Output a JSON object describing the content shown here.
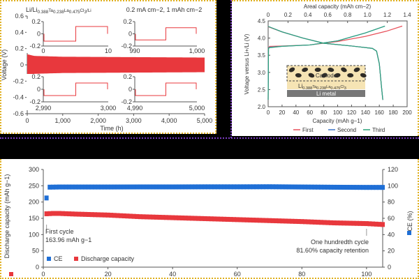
{
  "chart_data": [
    {
      "type": "line",
      "title": "Li/Li0.388Ta0.238La0.475Cl3/Li",
      "subtitle": "0.2 mA cm−2, 1 mAh cm−2",
      "xlabel": "Time (h)",
      "ylabel": "Voltage (V)",
      "xlim": [
        0,
        5000
      ],
      "ylim": [
        -0.6,
        0.6
      ],
      "xticks": [
        "0",
        "1,000",
        "2,000",
        "3,000",
        "4,000",
        "5,000"
      ],
      "yticks": [
        "-0.6",
        "-0.4",
        "-0.2",
        "0",
        "0.2",
        "0.4",
        "0.6"
      ],
      "series": [
        {
          "color": "#e8383d",
          "envelope_time": [
            0,
            200,
            1000,
            5000
          ],
          "envelope_amplitude": [
            0.13,
            0.11,
            0.1,
            0.09
          ]
        }
      ],
      "insets": [
        {
          "xticks": [
            "0",
            "10"
          ],
          "yticks": [
            "0.2",
            "0",
            "-0.2"
          ],
          "low": -0.12,
          "high": 0.12
        },
        {
          "xticks": [
            "990",
            "1,000"
          ],
          "yticks": [
            "0.2",
            "0",
            "-0.2"
          ],
          "low": -0.1,
          "high": 0.1
        },
        {
          "xticks": [
            "2,990",
            "3,000"
          ],
          "yticks": [
            "0.2",
            "0",
            "-0.2"
          ],
          "low": -0.1,
          "high": 0.1
        },
        {
          "xticks": [
            "4,990",
            "5,000"
          ],
          "yticks": [
            "0.2",
            "0",
            "-0.2"
          ],
          "low": -0.1,
          "high": 0.1
        }
      ]
    },
    {
      "type": "line",
      "xlabel": "Capacity (mAh g−1)",
      "ylabel": "Voltage versus Li+/Li (V)",
      "x2label": "Areal capacity (mAh cm−2)",
      "xlim": [
        0,
        200
      ],
      "ylim": [
        2.0,
        4.5
      ],
      "x2lim": [
        0,
        1.4
      ],
      "xticks": [
        "0",
        "20",
        "40",
        "60",
        "80",
        "100",
        "120",
        "140",
        "160",
        "180",
        "200"
      ],
      "x2ticks": [
        "0",
        "0.2",
        "0.4",
        "0.6",
        "0.8",
        "1.0",
        "1.2",
        "1.4"
      ],
      "yticks": [
        "2.0",
        "2.5",
        "3.0",
        "3.5",
        "4.0",
        "4.5"
      ],
      "legend": "bottom",
      "series": [
        {
          "name": "First",
          "color": "#e8505a",
          "charge": [
            [
              0,
              2.2
            ],
            [
              0.5,
              3.7
            ],
            [
              2,
              3.76
            ],
            [
              20,
              3.77
            ],
            [
              60,
              3.8
            ],
            [
              100,
              3.9
            ],
            [
              140,
              4.05
            ],
            [
              170,
              4.2
            ],
            [
              193,
              4.35
            ]
          ],
          "discharge": [
            [
              0,
              4.33
            ],
            [
              20,
              4.18
            ],
            [
              50,
              4.0
            ],
            [
              80,
              3.85
            ],
            [
              120,
              3.77
            ],
            [
              150,
              3.7
            ],
            [
              156,
              3.62
            ],
            [
              160,
              3.25
            ],
            [
              163,
              2.6
            ],
            [
              165,
              2.2
            ]
          ]
        },
        {
          "name": "Second",
          "color": "#3a72c8",
          "charge": [
            [
              0,
              2.2
            ],
            [
              0.5,
              3.7
            ],
            [
              2,
              3.73
            ],
            [
              20,
              3.76
            ],
            [
              60,
              3.8
            ],
            [
              100,
              3.92
            ],
            [
              140,
              4.15
            ],
            [
              168,
              4.35
            ]
          ],
          "discharge": [
            [
              0,
              4.34
            ],
            [
              20,
              4.18
            ],
            [
              50,
              4.0
            ],
            [
              80,
              3.85
            ],
            [
              120,
              3.77
            ],
            [
              150,
              3.7
            ],
            [
              156,
              3.62
            ],
            [
              160,
              3.25
            ],
            [
              163,
              2.6
            ],
            [
              165,
              2.2
            ]
          ]
        },
        {
          "name": "Third",
          "color": "#2aa37a",
          "charge": [
            [
              0,
              2.2
            ],
            [
              0.5,
              3.7
            ],
            [
              2,
              3.72
            ],
            [
              20,
              3.76
            ],
            [
              60,
              3.8
            ],
            [
              100,
              3.92
            ],
            [
              140,
              4.15
            ],
            [
              168,
              4.35
            ]
          ],
          "discharge": [
            [
              0,
              4.34
            ],
            [
              20,
              4.18
            ],
            [
              50,
              4.0
            ],
            [
              80,
              3.85
            ],
            [
              120,
              3.77
            ],
            [
              150,
              3.7
            ],
            [
              156,
              3.62
            ],
            [
              160,
              3.25
            ],
            [
              163,
              2.6
            ],
            [
              165,
              2.2
            ]
          ]
        }
      ],
      "schematic": {
        "cathode_label": "Cathode",
        "electrolyte_label": "Li0.388Ta0.238La0.475Cl3",
        "anode_label": "Li metal"
      }
    },
    {
      "type": "scatter",
      "xlabel": "",
      "ylabel": "Discharge capacity (mAh g−1)",
      "y2label": "CE (%)",
      "xlim": [
        0,
        105
      ],
      "ylim": [
        0,
        300
      ],
      "y2lim": [
        0,
        120
      ],
      "xticks": [
        "0",
        "20",
        "40",
        "60",
        "80",
        "100"
      ],
      "yticks": [
        "0",
        "50",
        "100",
        "150",
        "200",
        "250",
        "300"
      ],
      "y2ticks": [
        "0",
        "20",
        "40",
        "60",
        "80",
        "100",
        "120"
      ],
      "legend": "bottom-left",
      "series": [
        {
          "name": "CE",
          "color": "#1f6fd6",
          "axis": "right",
          "cycles": [
            1,
            2,
            5,
            10,
            20,
            30,
            40,
            50,
            60,
            70,
            80,
            90,
            100,
            105
          ],
          "values": [
            85,
            98.3,
            98.5,
            98.5,
            98.5,
            98.6,
            98.6,
            98.7,
            98.7,
            98.8,
            98.5,
            98.2,
            98.0,
            98.0
          ]
        },
        {
          "name": "Discharge capacity",
          "color": "#e8383d",
          "axis": "left",
          "cycles": [
            1,
            3,
            5,
            10,
            20,
            30,
            40,
            50,
            60,
            70,
            80,
            90,
            100,
            105
          ],
          "values": [
            163.96,
            165,
            165,
            163,
            160,
            155,
            152,
            149,
            146,
            143,
            140,
            136,
            133.8,
            131
          ]
        }
      ],
      "annotations": [
        {
          "text": [
            "First cycle",
            "163.96 mAh g−1"
          ],
          "cycle": 1
        },
        {
          "text": [
            "One hundredth cycle",
            "81.60% capacity retention"
          ],
          "cycle": 100
        }
      ]
    }
  ]
}
